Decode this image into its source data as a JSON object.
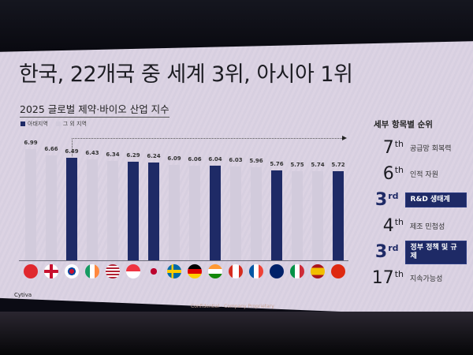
{
  "slide": {
    "title": "한국, 22개국 중 세계 3위, 아시아 1위",
    "subtitle": "2025 글로벌 제약·바이오 산업 지수",
    "legend": [
      {
        "label": "아태지역",
        "color": "#1e2a66"
      },
      {
        "label": "그 외 지역",
        "color": "#d2cbdc"
      }
    ],
    "source": "Cytiva",
    "footer": "Confidential - Company Proprietary"
  },
  "chart_data": {
    "type": "bar",
    "title": "2025 글로벌 제약·바이오 산업 지수",
    "xlabel": "",
    "ylabel": "",
    "categories": [
      "Switzerland",
      "United Kingdom",
      "South Korea",
      "Ireland",
      "United States",
      "Singapore",
      "Japan",
      "Sweden",
      "Germany",
      "India",
      "Canada",
      "France",
      "Australia",
      "Italy",
      "Spain",
      "China"
    ],
    "values": [
      6.99,
      6.66,
      6.49,
      6.43,
      6.34,
      6.29,
      6.24,
      6.09,
      6.06,
      6.04,
      6.03,
      5.96,
      5.76,
      5.75,
      5.74,
      5.72
    ],
    "region": [
      "other",
      "other",
      "apac",
      "other",
      "other",
      "apac",
      "apac",
      "other",
      "other",
      "apac",
      "other",
      "other",
      "apac",
      "other",
      "other",
      "apac"
    ],
    "legend": [
      "아태지역",
      "그 외 지역"
    ],
    "grid": false,
    "legend_position": "top-left",
    "annotation": "dotted arrow from South Korea bar to sub-ranking panel"
  },
  "ranks": {
    "title": "세부 항목별 순위",
    "items": [
      {
        "num": "7",
        "suffix": "th",
        "label": "공급망 회복력",
        "highlight": false
      },
      {
        "num": "6",
        "suffix": "th",
        "label": "인적 자원",
        "highlight": false
      },
      {
        "num": "3",
        "suffix": "rd",
        "label": "R&D 생태계",
        "highlight": true
      },
      {
        "num": "4",
        "suffix": "th",
        "label": "제조 민첩성",
        "highlight": false
      },
      {
        "num": "3",
        "suffix": "rd",
        "label": "정부 정책 및 규제",
        "highlight": true
      },
      {
        "num": "17",
        "suffix": "th",
        "label": "지속가능성",
        "highlight": false
      }
    ]
  }
}
